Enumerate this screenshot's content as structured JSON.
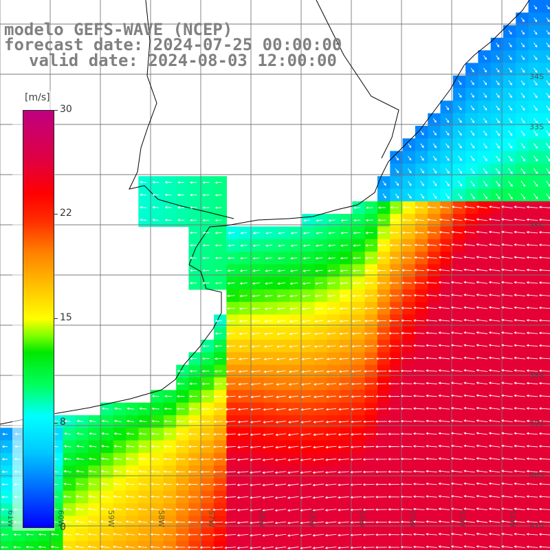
{
  "title": {
    "line1": "modelo GEFS-WAVE (NCEP)",
    "line2": "forecast date: 2024-07-25 00:00:00",
    "line3": "valid date: 2024-08-03 12:00:00"
  },
  "colorbar": {
    "unit": "[m/s]",
    "min": 0,
    "max": 30,
    "ticks": [
      "30",
      "22",
      "15",
      "8",
      "0"
    ]
  },
  "map": {
    "lat_labels": [
      "34S",
      "33S",
      "35S",
      "38S",
      "39S",
      "40S",
      "41S"
    ],
    "lon_labels": [
      "61W",
      "60W",
      "59W",
      "58W",
      "57W",
      "56W",
      "55W",
      "54W",
      "53W",
      "52W",
      "51W"
    ],
    "field": "wind speed (colors) with direction arrows"
  }
}
